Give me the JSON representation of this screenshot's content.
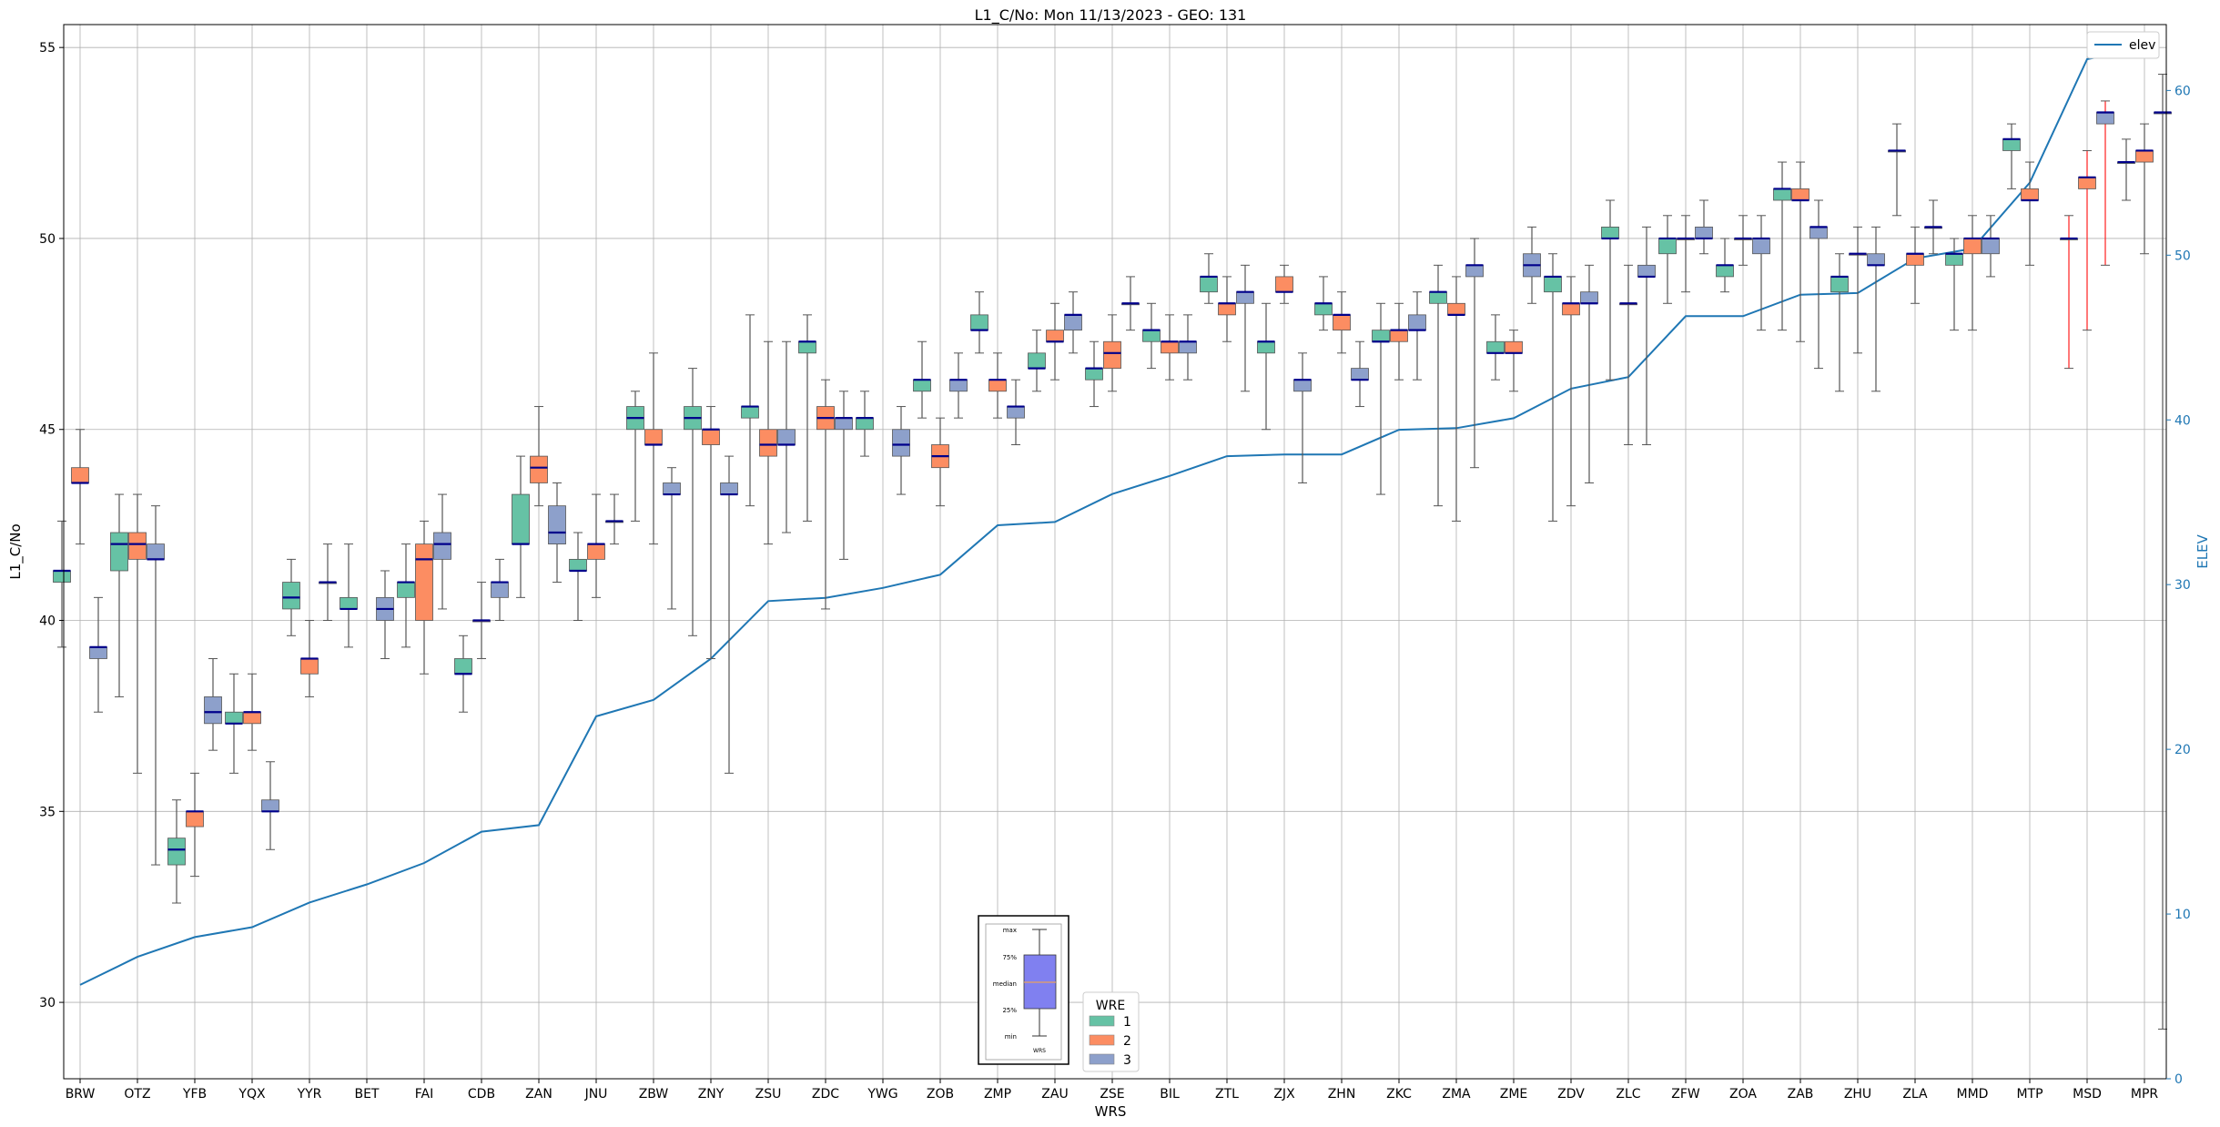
{
  "chart_data": {
    "type": "box",
    "title": "L1_C/No: Mon 11/13/2023 - GEO: 131",
    "xlabel": "WRS",
    "ylabel": "L1_C/No",
    "y2label": "ELEV",
    "ylim": [
      28,
      55.6
    ],
    "y2lim": [
      0,
      64
    ],
    "yticks": [
      30,
      35,
      40,
      45,
      50,
      55
    ],
    "y2ticks": [
      0,
      10,
      20,
      30,
      40,
      50,
      60
    ],
    "grid": true,
    "categories": [
      "BRW",
      "OTZ",
      "YFB",
      "YQX",
      "YYR",
      "BET",
      "FAI",
      "CDB",
      "ZAN",
      "JNU",
      "ZBW",
      "ZNY",
      "ZSU",
      "ZDC",
      "YWG",
      "ZOB",
      "ZMP",
      "ZAU",
      "ZSE",
      "BIL",
      "ZTL",
      "ZJX",
      "ZHN",
      "ZKC",
      "ZMA",
      "ZME",
      "ZDV",
      "ZLC",
      "ZFW",
      "ZOA",
      "ZAB",
      "ZHU",
      "ZLA",
      "MMD",
      "MTP",
      "MSD",
      "MPR"
    ],
    "series_colors": {
      "1": "#66c2a5",
      "2": "#fc8d62",
      "3": "#8da0cb",
      "elev": "#1f77b4"
    },
    "legend": {
      "elev_label": "elev",
      "elev_position": "top-right",
      "wre_title": "WRE",
      "wre_position": "bottom-center",
      "wre_items": [
        "1",
        "2",
        "3"
      ]
    },
    "inset_labels": [
      "max",
      "75%",
      "median",
      "25%",
      "min",
      "WRS"
    ],
    "elev": [
      5.7,
      7.4,
      8.6,
      9.2,
      10.7,
      11.8,
      13.1,
      15.0,
      15.4,
      22.0,
      23.0,
      25.5,
      29.0,
      29.2,
      29.8,
      30.6,
      33.6,
      33.8,
      35.5,
      36.6,
      37.8,
      37.9,
      37.9,
      39.4,
      39.5,
      40.1,
      41.9,
      42.6,
      46.3,
      46.3,
      47.6,
      47.7,
      49.8,
      50.4,
      54.4,
      61.9,
      62.6
    ],
    "boxes": [
      {
        "cat": "BRW",
        "wre": 1,
        "min": 39.3,
        "q1": 41.0,
        "med": 41.3,
        "q3": 41.3,
        "max": 42.6
      },
      {
        "cat": "BRW",
        "wre": 2,
        "min": 42.0,
        "q1": 43.6,
        "med": 43.6,
        "q3": 44.0,
        "max": 45.0
      },
      {
        "cat": "BRW",
        "wre": 3,
        "min": 37.6,
        "q1": 39.0,
        "med": 39.3,
        "q3": 39.3,
        "max": 40.6
      },
      {
        "cat": "OTZ",
        "wre": 1,
        "min": 38.0,
        "q1": 41.3,
        "med": 42.0,
        "q3": 42.3,
        "max": 43.3
      },
      {
        "cat": "OTZ",
        "wre": 2,
        "min": 36.0,
        "q1": 41.6,
        "med": 42.0,
        "q3": 42.3,
        "max": 43.3
      },
      {
        "cat": "OTZ",
        "wre": 3,
        "min": 33.6,
        "q1": 41.6,
        "med": 41.6,
        "q3": 42.0,
        "max": 43.0
      },
      {
        "cat": "YFB",
        "wre": 1,
        "min": 32.6,
        "q1": 33.6,
        "med": 34.0,
        "q3": 34.3,
        "max": 35.3
      },
      {
        "cat": "YFB",
        "wre": 2,
        "min": 33.3,
        "q1": 34.6,
        "med": 35.0,
        "q3": 35.0,
        "max": 36.0
      },
      {
        "cat": "YFB",
        "wre": 3,
        "min": 36.6,
        "q1": 37.3,
        "med": 37.6,
        "q3": 38.0,
        "max": 39.0
      },
      {
        "cat": "YQX",
        "wre": 1,
        "min": 36.0,
        "q1": 37.3,
        "med": 37.3,
        "q3": 37.6,
        "max": 38.6
      },
      {
        "cat": "YQX",
        "wre": 2,
        "min": 36.6,
        "q1": 37.3,
        "med": 37.6,
        "q3": 37.6,
        "max": 38.6
      },
      {
        "cat": "YQX",
        "wre": 3,
        "min": 34.0,
        "q1": 35.0,
        "med": 35.0,
        "q3": 35.3,
        "max": 36.3
      },
      {
        "cat": "YYR",
        "wre": 1,
        "min": 39.6,
        "q1": 40.3,
        "med": 40.6,
        "q3": 41.0,
        "max": 41.6
      },
      {
        "cat": "YYR",
        "wre": 2,
        "min": 38.0,
        "q1": 38.6,
        "med": 39.0,
        "q3": 39.0,
        "max": 40.0
      },
      {
        "cat": "YYR",
        "wre": 3,
        "min": 40.0,
        "q1": 41.0,
        "med": 41.0,
        "q3": 41.0,
        "max": 42.0
      },
      {
        "cat": "BET",
        "wre": 1,
        "min": 39.3,
        "q1": 40.3,
        "med": 40.3,
        "q3": 40.6,
        "max": 42.0
      },
      {
        "cat": "BET",
        "wre": 3,
        "min": 39.0,
        "q1": 40.0,
        "med": 40.3,
        "q3": 40.6,
        "max": 41.3
      },
      {
        "cat": "FAI",
        "wre": 1,
        "min": 39.3,
        "q1": 40.6,
        "med": 41.0,
        "q3": 41.0,
        "max": 42.0
      },
      {
        "cat": "FAI",
        "wre": 2,
        "min": 38.6,
        "q1": 40.0,
        "med": 41.6,
        "q3": 42.0,
        "max": 42.6
      },
      {
        "cat": "FAI",
        "wre": 3,
        "min": 40.3,
        "q1": 41.6,
        "med": 42.0,
        "q3": 42.3,
        "max": 43.3
      },
      {
        "cat": "CDB",
        "wre": 1,
        "min": 37.6,
        "q1": 38.6,
        "med": 38.6,
        "q3": 39.0,
        "max": 39.6
      },
      {
        "cat": "CDB",
        "wre": 2,
        "min": 39.0,
        "q1": 40.0,
        "med": 40.0,
        "q3": 40.0,
        "max": 41.0
      },
      {
        "cat": "CDB",
        "wre": 3,
        "min": 40.0,
        "q1": 40.6,
        "med": 41.0,
        "q3": 41.0,
        "max": 41.6
      },
      {
        "cat": "ZAN",
        "wre": 1,
        "min": 40.6,
        "q1": 42.0,
        "med": 42.0,
        "q3": 43.3,
        "max": 44.3
      },
      {
        "cat": "ZAN",
        "wre": 2,
        "min": 43.0,
        "q1": 43.6,
        "med": 44.0,
        "q3": 44.3,
        "max": 45.6
      },
      {
        "cat": "ZAN",
        "wre": 3,
        "min": 41.0,
        "q1": 42.0,
        "med": 42.3,
        "q3": 43.0,
        "max": 43.6
      },
      {
        "cat": "JNU",
        "wre": 1,
        "min": 40.0,
        "q1": 41.3,
        "med": 41.3,
        "q3": 41.6,
        "max": 42.3
      },
      {
        "cat": "JNU",
        "wre": 2,
        "min": 40.6,
        "q1": 41.6,
        "med": 42.0,
        "q3": 42.0,
        "max": 43.3
      },
      {
        "cat": "JNU",
        "wre": 3,
        "min": 42.0,
        "q1": 42.6,
        "med": 42.6,
        "q3": 42.6,
        "max": 43.3
      },
      {
        "cat": "ZBW",
        "wre": 1,
        "min": 42.6,
        "q1": 45.0,
        "med": 45.3,
        "q3": 45.6,
        "max": 46.0
      },
      {
        "cat": "ZBW",
        "wre": 2,
        "min": 42.0,
        "q1": 44.6,
        "med": 44.6,
        "q3": 45.0,
        "max": 47.0
      },
      {
        "cat": "ZBW",
        "wre": 3,
        "min": 40.3,
        "q1": 43.3,
        "med": 43.3,
        "q3": 43.6,
        "max": 44.0
      },
      {
        "cat": "ZNY",
        "wre": 1,
        "min": 39.6,
        "q1": 45.0,
        "med": 45.3,
        "q3": 45.6,
        "max": 46.6
      },
      {
        "cat": "ZNY",
        "wre": 2,
        "min": 39.0,
        "q1": 44.6,
        "med": 45.0,
        "q3": 45.0,
        "max": 45.6
      },
      {
        "cat": "ZNY",
        "wre": 3,
        "min": 36.0,
        "q1": 43.3,
        "med": 43.3,
        "q3": 43.6,
        "max": 44.3
      },
      {
        "cat": "ZSU",
        "wre": 1,
        "min": 43.0,
        "q1": 45.3,
        "med": 45.6,
        "q3": 45.6,
        "max": 48.0
      },
      {
        "cat": "ZSU",
        "wre": 2,
        "min": 42.0,
        "q1": 44.3,
        "med": 44.6,
        "q3": 45.0,
        "max": 47.3
      },
      {
        "cat": "ZSU",
        "wre": 3,
        "min": 42.3,
        "q1": 44.6,
        "med": 44.6,
        "q3": 45.0,
        "max": 47.3
      },
      {
        "cat": "ZDC",
        "wre": 1,
        "min": 42.6,
        "q1": 47.0,
        "med": 47.3,
        "q3": 47.3,
        "max": 48.0
      },
      {
        "cat": "ZDC",
        "wre": 2,
        "min": 40.3,
        "q1": 45.0,
        "med": 45.3,
        "q3": 45.6,
        "max": 46.3
      },
      {
        "cat": "ZDC",
        "wre": 3,
        "min": 41.6,
        "q1": 45.0,
        "med": 45.3,
        "q3": 45.3,
        "max": 46.0
      },
      {
        "cat": "YWG",
        "wre": 1,
        "min": 44.3,
        "q1": 45.0,
        "med": 45.3,
        "q3": 45.3,
        "max": 46.0
      },
      {
        "cat": "YWG",
        "wre": 3,
        "min": 43.3,
        "q1": 44.3,
        "med": 44.6,
        "q3": 45.0,
        "max": 45.6
      },
      {
        "cat": "ZOB",
        "wre": 1,
        "min": 45.3,
        "q1": 46.0,
        "med": 46.3,
        "q3": 46.3,
        "max": 47.3
      },
      {
        "cat": "ZOB",
        "wre": 2,
        "min": 43.0,
        "q1": 44.0,
        "med": 44.3,
        "q3": 44.6,
        "max": 45.3
      },
      {
        "cat": "ZOB",
        "wre": 3,
        "min": 45.3,
        "q1": 46.0,
        "med": 46.3,
        "q3": 46.3,
        "max": 47.0
      },
      {
        "cat": "ZMP",
        "wre": 1,
        "min": 47.0,
        "q1": 47.6,
        "med": 47.6,
        "q3": 48.0,
        "max": 48.6
      },
      {
        "cat": "ZMP",
        "wre": 2,
        "min": 45.3,
        "q1": 46.0,
        "med": 46.3,
        "q3": 46.3,
        "max": 47.0
      },
      {
        "cat": "ZMP",
        "wre": 3,
        "min": 44.6,
        "q1": 45.3,
        "med": 45.6,
        "q3": 45.6,
        "max": 46.3
      },
      {
        "cat": "ZAU",
        "wre": 1,
        "min": 46.0,
        "q1": 46.6,
        "med": 46.6,
        "q3": 47.0,
        "max": 47.6
      },
      {
        "cat": "ZAU",
        "wre": 2,
        "min": 46.3,
        "q1": 47.3,
        "med": 47.3,
        "q3": 47.6,
        "max": 48.3
      },
      {
        "cat": "ZAU",
        "wre": 3,
        "min": 47.0,
        "q1": 47.6,
        "med": 48.0,
        "q3": 48.0,
        "max": 48.6
      },
      {
        "cat": "ZSE",
        "wre": 1,
        "min": 45.6,
        "q1": 46.3,
        "med": 46.6,
        "q3": 46.6,
        "max": 47.3
      },
      {
        "cat": "ZSE",
        "wre": 2,
        "min": 46.0,
        "q1": 46.6,
        "med": 47.0,
        "q3": 47.3,
        "max": 48.0
      },
      {
        "cat": "ZSE",
        "wre": 3,
        "min": 47.6,
        "q1": 48.3,
        "med": 48.3,
        "q3": 48.3,
        "max": 49.0
      },
      {
        "cat": "BIL",
        "wre": 1,
        "min": 46.6,
        "q1": 47.3,
        "med": 47.6,
        "q3": 47.6,
        "max": 48.3
      },
      {
        "cat": "BIL",
        "wre": 2,
        "min": 46.3,
        "q1": 47.0,
        "med": 47.3,
        "q3": 47.3,
        "max": 48.0
      },
      {
        "cat": "BIL",
        "wre": 3,
        "min": 46.3,
        "q1": 47.0,
        "med": 47.3,
        "q3": 47.3,
        "max": 48.0
      },
      {
        "cat": "ZTL",
        "wre": 1,
        "min": 48.3,
        "q1": 48.6,
        "med": 49.0,
        "q3": 49.0,
        "max": 49.6
      },
      {
        "cat": "ZTL",
        "wre": 2,
        "min": 47.3,
        "q1": 48.0,
        "med": 48.3,
        "q3": 48.3,
        "max": 49.0
      },
      {
        "cat": "ZTL",
        "wre": 3,
        "min": 46.0,
        "q1": 48.3,
        "med": 48.6,
        "q3": 48.6,
        "max": 49.3
      },
      {
        "cat": "ZJX",
        "wre": 1,
        "min": 45.0,
        "q1": 47.0,
        "med": 47.3,
        "q3": 47.3,
        "max": 48.3
      },
      {
        "cat": "ZJX",
        "wre": 2,
        "min": 48.3,
        "q1": 48.6,
        "med": 48.6,
        "q3": 49.0,
        "max": 49.3
      },
      {
        "cat": "ZJX",
        "wre": 3,
        "min": 43.6,
        "q1": 46.0,
        "med": 46.3,
        "q3": 46.3,
        "max": 47.0
      },
      {
        "cat": "ZHN",
        "wre": 1,
        "min": 47.6,
        "q1": 48.0,
        "med": 48.3,
        "q3": 48.3,
        "max": 49.0
      },
      {
        "cat": "ZHN",
        "wre": 2,
        "min": 47.0,
        "q1": 47.6,
        "med": 48.0,
        "q3": 48.0,
        "max": 48.6
      },
      {
        "cat": "ZHN",
        "wre": 3,
        "min": 45.6,
        "q1": 46.3,
        "med": 46.3,
        "q3": 46.6,
        "max": 47.3
      },
      {
        "cat": "ZKC",
        "wre": 1,
        "min": 43.3,
        "q1": 47.3,
        "med": 47.3,
        "q3": 47.6,
        "max": 48.3
      },
      {
        "cat": "ZKC",
        "wre": 2,
        "min": 46.3,
        "q1": 47.3,
        "med": 47.6,
        "q3": 47.6,
        "max": 48.3
      },
      {
        "cat": "ZKC",
        "wre": 3,
        "min": 46.3,
        "q1": 47.6,
        "med": 47.6,
        "q3": 48.0,
        "max": 48.6
      },
      {
        "cat": "ZMA",
        "wre": 1,
        "min": 43.0,
        "q1": 48.3,
        "med": 48.6,
        "q3": 48.6,
        "max": 49.3
      },
      {
        "cat": "ZMA",
        "wre": 2,
        "min": 42.6,
        "q1": 48.0,
        "med": 48.0,
        "q3": 48.3,
        "max": 49.0
      },
      {
        "cat": "ZMA",
        "wre": 3,
        "min": 44.0,
        "q1": 49.0,
        "med": 49.3,
        "q3": 49.3,
        "max": 50.0
      },
      {
        "cat": "ZME",
        "wre": 1,
        "min": 46.3,
        "q1": 47.0,
        "med": 47.0,
        "q3": 47.3,
        "max": 48.0
      },
      {
        "cat": "ZME",
        "wre": 2,
        "min": 46.0,
        "q1": 47.0,
        "med": 47.0,
        "q3": 47.3,
        "max": 47.6
      },
      {
        "cat": "ZME",
        "wre": 3,
        "min": 48.3,
        "q1": 49.0,
        "med": 49.3,
        "q3": 49.6,
        "max": 50.3
      },
      {
        "cat": "ZDV",
        "wre": 1,
        "min": 42.6,
        "q1": 48.6,
        "med": 49.0,
        "q3": 49.0,
        "max": 49.6
      },
      {
        "cat": "ZDV",
        "wre": 2,
        "min": 43.0,
        "q1": 48.0,
        "med": 48.3,
        "q3": 48.3,
        "max": 49.0
      },
      {
        "cat": "ZDV",
        "wre": 3,
        "min": 43.6,
        "q1": 48.3,
        "med": 48.3,
        "q3": 48.6,
        "max": 49.3
      },
      {
        "cat": "ZLC",
        "wre": 1,
        "min": 46.3,
        "q1": 50.0,
        "med": 50.0,
        "q3": 50.3,
        "max": 51.0
      },
      {
        "cat": "ZLC",
        "wre": 2,
        "min": 44.6,
        "q1": 48.3,
        "med": 48.3,
        "q3": 48.3,
        "max": 49.3
      },
      {
        "cat": "ZLC",
        "wre": 3,
        "min": 44.6,
        "q1": 49.0,
        "med": 49.0,
        "q3": 49.3,
        "max": 50.3
      },
      {
        "cat": "ZFW",
        "wre": 1,
        "min": 48.3,
        "q1": 49.6,
        "med": 50.0,
        "q3": 50.0,
        "max": 50.6
      },
      {
        "cat": "ZFW",
        "wre": 2,
        "min": 48.6,
        "q1": 50.0,
        "med": 50.0,
        "q3": 50.0,
        "max": 50.6
      },
      {
        "cat": "ZFW",
        "wre": 3,
        "min": 49.6,
        "q1": 50.0,
        "med": 50.0,
        "q3": 50.3,
        "max": 51.0
      },
      {
        "cat": "ZOA",
        "wre": 1,
        "min": 48.6,
        "q1": 49.0,
        "med": 49.3,
        "q3": 49.3,
        "max": 50.0
      },
      {
        "cat": "ZOA",
        "wre": 2,
        "min": 49.3,
        "q1": 50.0,
        "med": 50.0,
        "q3": 50.0,
        "max": 50.6
      },
      {
        "cat": "ZOA",
        "wre": 3,
        "min": 47.6,
        "q1": 49.6,
        "med": 50.0,
        "q3": 50.0,
        "max": 50.6
      },
      {
        "cat": "ZAB",
        "wre": 1,
        "min": 47.6,
        "q1": 51.0,
        "med": 51.3,
        "q3": 51.3,
        "max": 52.0
      },
      {
        "cat": "ZAB",
        "wre": 2,
        "min": 47.3,
        "q1": 51.0,
        "med": 51.0,
        "q3": 51.3,
        "max": 52.0
      },
      {
        "cat": "ZAB",
        "wre": 3,
        "min": 46.6,
        "q1": 50.0,
        "med": 50.3,
        "q3": 50.3,
        "max": 51.0
      },
      {
        "cat": "ZHU",
        "wre": 1,
        "min": 46.0,
        "q1": 48.6,
        "med": 49.0,
        "q3": 49.0,
        "max": 49.6
      },
      {
        "cat": "ZHU",
        "wre": 2,
        "min": 47.0,
        "q1": 49.6,
        "med": 49.6,
        "q3": 49.6,
        "max": 50.3
      },
      {
        "cat": "ZHU",
        "wre": 3,
        "min": 46.0,
        "q1": 49.3,
        "med": 49.3,
        "q3": 49.6,
        "max": 50.3
      },
      {
        "cat": "ZLA",
        "wre": 1,
        "min": 50.6,
        "q1": 52.3,
        "med": 52.3,
        "q3": 52.3,
        "max": 53.0
      },
      {
        "cat": "ZLA",
        "wre": 2,
        "min": 48.3,
        "q1": 49.3,
        "med": 49.6,
        "q3": 49.6,
        "max": 50.3
      },
      {
        "cat": "ZLA",
        "wre": 3,
        "min": 49.6,
        "q1": 50.3,
        "med": 50.3,
        "q3": 50.3,
        "max": 51.0
      },
      {
        "cat": "MMD",
        "wre": 1,
        "min": 47.6,
        "q1": 49.3,
        "med": 49.6,
        "q3": 49.6,
        "max": 50.0
      },
      {
        "cat": "MMD",
        "wre": 2,
        "min": 47.6,
        "q1": 49.6,
        "med": 50.0,
        "q3": 50.0,
        "max": 50.6
      },
      {
        "cat": "MMD",
        "wre": 3,
        "min": 49.0,
        "q1": 49.6,
        "med": 50.0,
        "q3": 50.0,
        "max": 50.6
      },
      {
        "cat": "MTP",
        "wre": 1,
        "min": 51.3,
        "q1": 52.3,
        "med": 52.6,
        "q3": 52.6,
        "max": 53.0
      },
      {
        "cat": "MTP",
        "wre": 2,
        "min": 49.3,
        "q1": 51.0,
        "med": 51.0,
        "q3": 51.3,
        "max": 52.0
      },
      {
        "cat": "MSD",
        "wre": 1,
        "min": 46.6,
        "q1": 50.0,
        "med": 50.0,
        "q3": 50.0,
        "max": 50.6,
        "outlier_style": true
      },
      {
        "cat": "MSD",
        "wre": 2,
        "min": 47.6,
        "q1": 51.3,
        "med": 51.6,
        "q3": 51.6,
        "max": 52.3,
        "outlier_style": true
      },
      {
        "cat": "MSD",
        "wre": 3,
        "min": 49.3,
        "q1": 53.0,
        "med": 53.3,
        "q3": 53.3,
        "max": 53.6,
        "outlier_style": true
      },
      {
        "cat": "MPR",
        "wre": 1,
        "min": 51.0,
        "q1": 52.0,
        "med": 52.0,
        "q3": 52.0,
        "max": 52.6
      },
      {
        "cat": "MPR",
        "wre": 2,
        "min": 49.6,
        "q1": 52.0,
        "med": 52.3,
        "q3": 52.3,
        "max": 53.0
      },
      {
        "cat": "MPR",
        "wre": 3,
        "min": 29.3,
        "q1": 53.3,
        "med": 53.3,
        "q3": 53.3,
        "max": 54.3
      }
    ]
  }
}
